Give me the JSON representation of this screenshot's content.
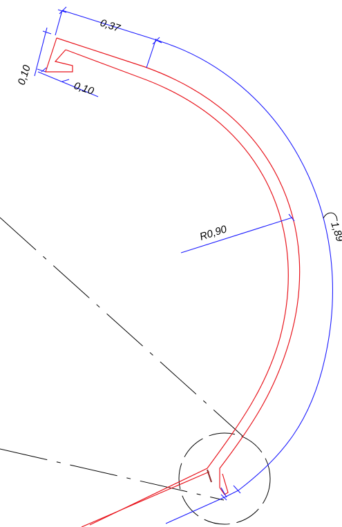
{
  "drawing": {
    "colors": {
      "profile": "#e8141c",
      "dimension": "#1a1aff",
      "construction": "#000000"
    },
    "dimensions": {
      "top_length": "0,37",
      "left_height": "0,10",
      "bottom_width": "0,10",
      "radius": "R0,90",
      "arc_length": "1,89"
    }
  }
}
